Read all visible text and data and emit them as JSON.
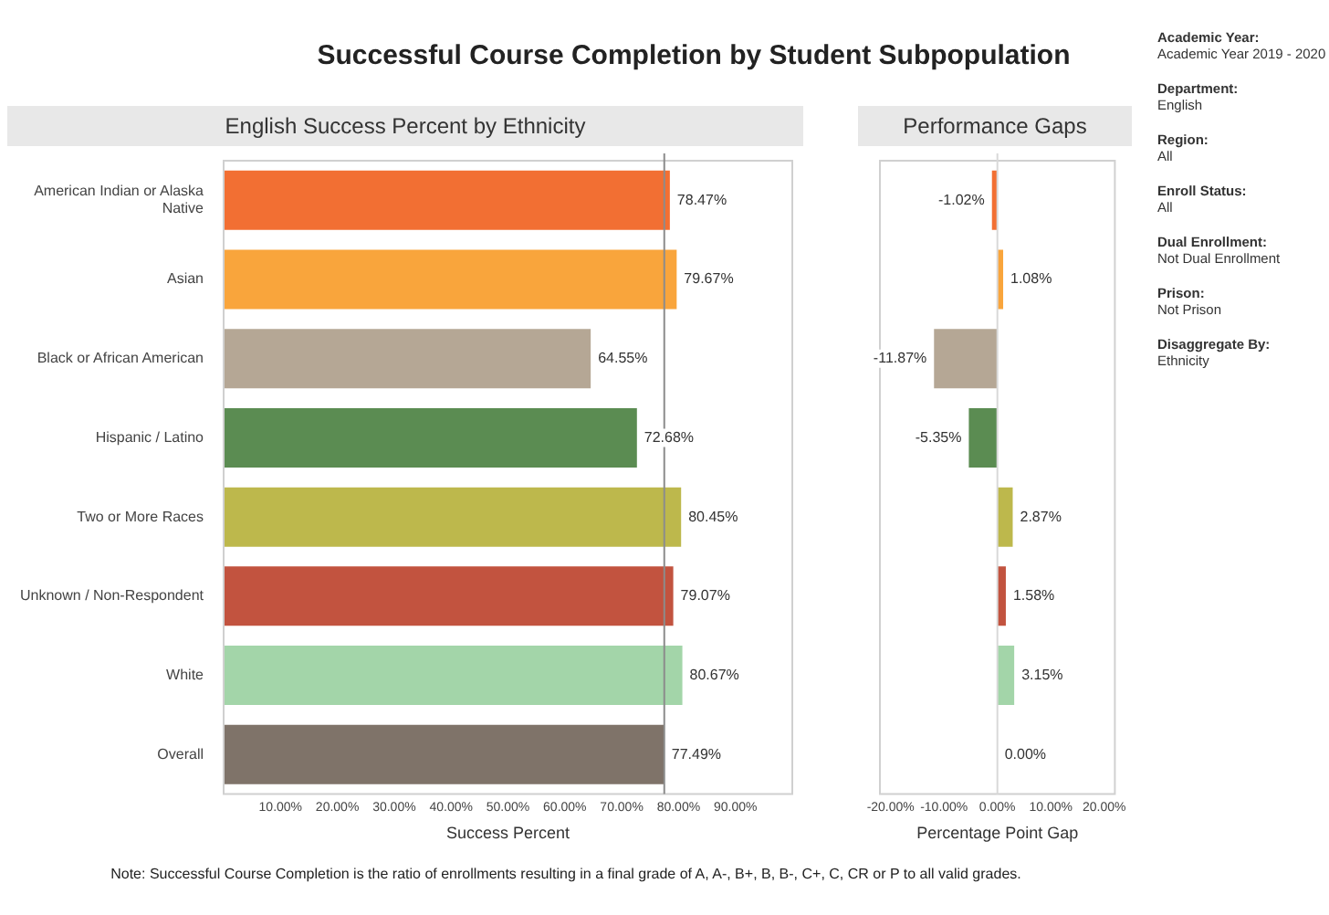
{
  "chart_data": [
    {
      "type": "bar",
      "orientation": "horizontal",
      "title": "English Success Percent by Ethnicity",
      "xlabel": "Success Percent",
      "categories": [
        "American Indian or Alaska Native",
        "Asian",
        "Black or African American",
        "Hispanic / Latino",
        "Two or More Races",
        "Unknown / Non-Respondent",
        "White",
        "Overall"
      ],
      "values": [
        78.47,
        79.67,
        64.55,
        72.68,
        80.45,
        79.07,
        80.67,
        77.49
      ],
      "colors": [
        "#f26f33",
        "#f9a53c",
        "#b5a795",
        "#5b8c52",
        "#bdb84c",
        "#c2533f",
        "#a3d5a9",
        "#7f7369"
      ],
      "value_labels": [
        "78.47%",
        "79.67%",
        "64.55%",
        "72.68%",
        "80.45%",
        "79.07%",
        "80.67%",
        "77.49%"
      ],
      "xlim": [
        0,
        100
      ],
      "xticks": [
        {
          "value": 10,
          "label": "10.00%"
        },
        {
          "value": 20,
          "label": "20.00%"
        },
        {
          "value": 30,
          "label": "30.00%"
        },
        {
          "value": 40,
          "label": "40.00%"
        },
        {
          "value": 50,
          "label": "50.00%"
        },
        {
          "value": 60,
          "label": "60.00%"
        },
        {
          "value": 70,
          "label": "70.00%"
        },
        {
          "value": 80,
          "label": "80.00%"
        },
        {
          "value": 90,
          "label": "90.00%"
        }
      ],
      "ref_lines": [
        {
          "axis": "x",
          "value": 77.49,
          "color": "#8c8c8c"
        }
      ],
      "annotations": [
        "Note: Successful Course Completion is the ratio of enrollments resulting in a final grade of A, A-, B+, B, B-, C+, C, CR or P to all valid grades."
      ]
    },
    {
      "type": "bar",
      "orientation": "horizontal",
      "title": "Performance Gaps",
      "xlabel": "Percentage Point Gap",
      "categories": [
        null,
        null,
        null,
        null,
        null,
        null,
        null,
        null
      ],
      "values": [
        -1.02,
        1.08,
        -11.87,
        -5.35,
        2.87,
        1.58,
        3.15,
        0.0
      ],
      "colors": [
        "#f26f33",
        "#f9a53c",
        "#b5a795",
        "#5b8c52",
        "#bdb84c",
        "#c2533f",
        "#a3d5a9",
        "#7f7369"
      ],
      "value_labels": [
        "-1.02%",
        "1.08%",
        "-11.87%",
        "-5.35%",
        "2.87%",
        "1.58%",
        "3.15%",
        "0.00%"
      ],
      "xlim": [
        -22,
        22
      ],
      "xticks": [
        {
          "value": -20,
          "label": "-20.00%"
        },
        {
          "value": -10,
          "label": "-10.00%"
        },
        {
          "value": 0,
          "label": "0.00%"
        },
        {
          "value": 10,
          "label": "10.00%"
        },
        {
          "value": 20,
          "label": "20.00%"
        }
      ],
      "ref_lines": [
        {
          "axis": "x",
          "value": 0,
          "color": "#d9d9d9"
        }
      ],
      "tick_labels": "x"
    },
    {
      "type": "other",
      "title": "Successful Course Completion by Student Subpopulation",
      "annotations": [
        "Academic Year:",
        "Academic Year 2019 - 2020",
        "Department:",
        "English",
        "Region:",
        "All",
        "Enroll Status:",
        "All",
        "Dual Enrollment:",
        "Not Dual Enrollment",
        "Prison:",
        "Not Prison",
        "Disaggregate By:",
        "Ethnicity"
      ]
    }
  ]
}
